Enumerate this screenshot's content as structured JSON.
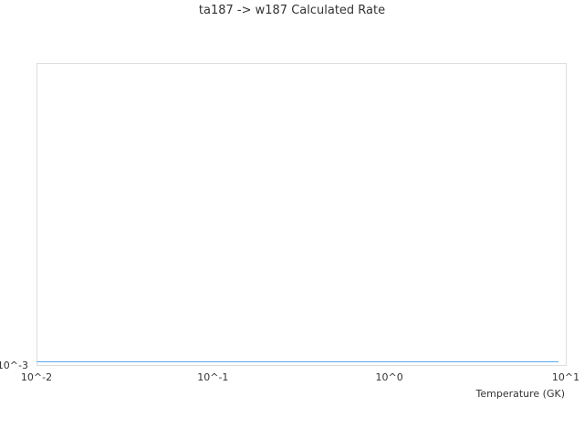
{
  "chart_data": {
    "type": "line",
    "title": "ta187 -> w187 Calculated Rate",
    "xlabel": "Temperature (GK)",
    "ylabel": "",
    "xscale": "log",
    "yscale": "log",
    "xlim": [
      0.01,
      10
    ],
    "x_ticks": [
      "10^-2",
      "10^-1",
      "10^0",
      "10^1"
    ],
    "y_ticks": [
      "10^-3"
    ],
    "grid": false,
    "series": [
      {
        "x": [
          0.01,
          9.1
        ],
        "y": [
          0.001,
          0.001
        ],
        "color": "#5aa9f0"
      }
    ]
  }
}
